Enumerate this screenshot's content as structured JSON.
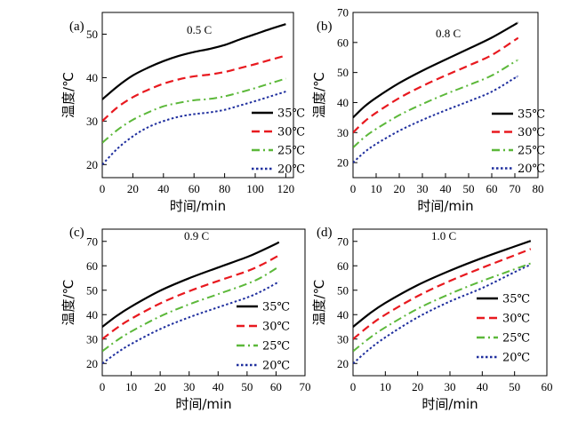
{
  "figure": {
    "x_axis_title": "时间/min",
    "y_axis_title": "温度/℃"
  },
  "chart_data": [
    {
      "type": "line",
      "panel_label": "(a)",
      "title": "0.5 C",
      "xlabel": "时间/min",
      "ylabel": "温度/℃",
      "xlim": [
        0,
        125
      ],
      "ylim": [
        17,
        55
      ],
      "xticks": [
        0,
        20,
        40,
        60,
        80,
        100,
        120
      ],
      "yticks": [
        20,
        30,
        40,
        50
      ],
      "legend_position": "center-right",
      "series": [
        {
          "name": "35℃",
          "color": "#000000",
          "dash": "solid",
          "x": [
            0,
            10,
            20,
            30,
            40,
            50,
            60,
            70,
            80,
            90,
            100,
            110,
            120
          ],
          "y": [
            35,
            38,
            40.5,
            42.3,
            43.8,
            45,
            45.9,
            46.6,
            47.5,
            48.8,
            50,
            51.2,
            52.3
          ]
        },
        {
          "name": "30℃",
          "color": "#e8191f",
          "dash": "dash",
          "x": [
            0,
            10,
            20,
            30,
            40,
            50,
            60,
            70,
            80,
            90,
            100,
            110,
            120
          ],
          "y": [
            30,
            33.2,
            35.5,
            37.2,
            38.6,
            39.6,
            40.3,
            40.7,
            41.3,
            42.2,
            43.1,
            44.1,
            45.1
          ]
        },
        {
          "name": "25℃",
          "color": "#5cb83a",
          "dash": "dashdot",
          "x": [
            0,
            10,
            20,
            30,
            40,
            50,
            60,
            70,
            80,
            90,
            100,
            110,
            120
          ],
          "y": [
            25,
            28,
            30.3,
            32,
            33.4,
            34.2,
            34.8,
            35.1,
            35.7,
            36.6,
            37.6,
            38.7,
            39.8
          ]
        },
        {
          "name": "20℃",
          "color": "#1f2f9e",
          "dash": "dot",
          "x": [
            0,
            10,
            20,
            30,
            40,
            50,
            60,
            70,
            80,
            90,
            100,
            110,
            120
          ],
          "y": [
            20,
            23.7,
            26.5,
            28.6,
            30,
            31,
            31.6,
            32,
            32.6,
            33.6,
            34.6,
            35.7,
            36.8
          ]
        }
      ]
    },
    {
      "type": "line",
      "panel_label": "(b)",
      "title": "0.8 C",
      "xlabel": "时间/min",
      "ylabel": "温度/℃",
      "xlim": [
        0,
        80
      ],
      "ylim": [
        15,
        70
      ],
      "xticks": [
        0,
        10,
        20,
        30,
        40,
        50,
        60,
        70,
        80
      ],
      "yticks": [
        20,
        30,
        40,
        50,
        60,
        70
      ],
      "legend_position": "center-right",
      "series": [
        {
          "name": "35℃",
          "color": "#000000",
          "dash": "solid",
          "x": [
            0,
            5,
            10,
            20,
            30,
            40,
            50,
            60,
            70,
            71
          ],
          "y": [
            35,
            38.7,
            41.6,
            46.5,
            50.6,
            54.3,
            57.9,
            61.6,
            66,
            66.5
          ]
        },
        {
          "name": "30℃",
          "color": "#e8191f",
          "dash": "dash",
          "x": [
            0,
            5,
            10,
            20,
            30,
            40,
            50,
            60,
            70,
            71
          ],
          "y": [
            30,
            33.7,
            36.6,
            41.5,
            45.5,
            49,
            52.3,
            55.8,
            60.8,
            61.3
          ]
        },
        {
          "name": "25℃",
          "color": "#5cb83a",
          "dash": "dashdot",
          "x": [
            0,
            5,
            10,
            20,
            30,
            40,
            50,
            60,
            70,
            71
          ],
          "y": [
            25,
            28.5,
            31.2,
            35.8,
            39.5,
            42.8,
            45.8,
            49,
            53.6,
            54
          ]
        },
        {
          "name": "20℃",
          "color": "#1f2f9e",
          "dash": "dot",
          "x": [
            0,
            5,
            10,
            20,
            30,
            40,
            50,
            60,
            70,
            71
          ],
          "y": [
            20,
            23.5,
            26.2,
            30.6,
            34.2,
            37.4,
            40.4,
            43.6,
            48.2,
            48.6
          ]
        }
      ]
    },
    {
      "type": "line",
      "panel_label": "(c)",
      "title": "0.9 C",
      "xlabel": "时间/min",
      "ylabel": "温度/℃",
      "xlim": [
        0,
        70
      ],
      "ylim": [
        15,
        75
      ],
      "xticks": [
        0,
        10,
        20,
        30,
        40,
        50,
        60,
        70
      ],
      "yticks": [
        20,
        30,
        40,
        50,
        60,
        70
      ],
      "legend_position": "center-right",
      "series": [
        {
          "name": "35℃",
          "color": "#000000",
          "dash": "solid",
          "x": [
            0,
            5,
            10,
            20,
            30,
            40,
            50,
            55,
            60,
            61
          ],
          "y": [
            35,
            39.5,
            43.3,
            49.8,
            54.9,
            59.3,
            63.6,
            66.2,
            69,
            69.7
          ]
        },
        {
          "name": "30℃",
          "color": "#e8191f",
          "dash": "dash",
          "x": [
            0,
            5,
            10,
            20,
            30,
            40,
            50,
            55,
            60,
            61
          ],
          "y": [
            30,
            34.5,
            38.3,
            44.6,
            49.6,
            53.8,
            57.8,
            60.4,
            63.6,
            64.3
          ]
        },
        {
          "name": "25℃",
          "color": "#5cb83a",
          "dash": "dashdot",
          "x": [
            0,
            5,
            10,
            20,
            30,
            40,
            50,
            55,
            60,
            61
          ],
          "y": [
            25,
            29.4,
            33.1,
            39.3,
            44.2,
            48.4,
            52.6,
            55.3,
            58.9,
            59.7
          ]
        },
        {
          "name": "20℃",
          "color": "#1f2f9e",
          "dash": "dot",
          "x": [
            0,
            5,
            10,
            20,
            30,
            40,
            50,
            55,
            60,
            61
          ],
          "y": [
            20,
            24.3,
            28,
            34.1,
            38.9,
            43,
            47,
            49.6,
            52.8,
            53.5
          ]
        }
      ]
    },
    {
      "type": "line",
      "panel_label": "(d)",
      "title": "1.0 C",
      "xlabel": "时间/min",
      "ylabel": "温度/℃",
      "xlim": [
        0,
        60
      ],
      "ylim": [
        15,
        75
      ],
      "xticks": [
        0,
        10,
        20,
        30,
        40,
        50,
        60
      ],
      "yticks": [
        20,
        30,
        40,
        50,
        60,
        70
      ],
      "legend_position": "center-right",
      "series": [
        {
          "name": "35℃",
          "color": "#000000",
          "dash": "solid",
          "x": [
            0,
            5,
            10,
            20,
            30,
            40,
            50,
            55
          ],
          "y": [
            35,
            40.3,
            44.8,
            52.1,
            58,
            63.2,
            67.9,
            70.2
          ]
        },
        {
          "name": "30℃",
          "color": "#e8191f",
          "dash": "dash",
          "x": [
            0,
            5,
            10,
            20,
            30,
            40,
            50,
            55
          ],
          "y": [
            30,
            35.4,
            40,
            47.6,
            53.8,
            59.2,
            64.3,
            66.9
          ]
        },
        {
          "name": "25℃",
          "color": "#5cb83a",
          "dash": "dashdot",
          "x": [
            0,
            5,
            10,
            20,
            30,
            40,
            50,
            55
          ],
          "y": [
            25,
            30.3,
            34.8,
            42.4,
            48.5,
            53.8,
            58.6,
            61
          ]
        },
        {
          "name": "20℃",
          "color": "#1f2f9e",
          "dash": "dot",
          "x": [
            0,
            5,
            10,
            20,
            30,
            40,
            50,
            55
          ],
          "y": [
            20,
            25.8,
            30.7,
            38.9,
            45.4,
            50.9,
            57.4,
            60.5
          ]
        }
      ]
    }
  ]
}
